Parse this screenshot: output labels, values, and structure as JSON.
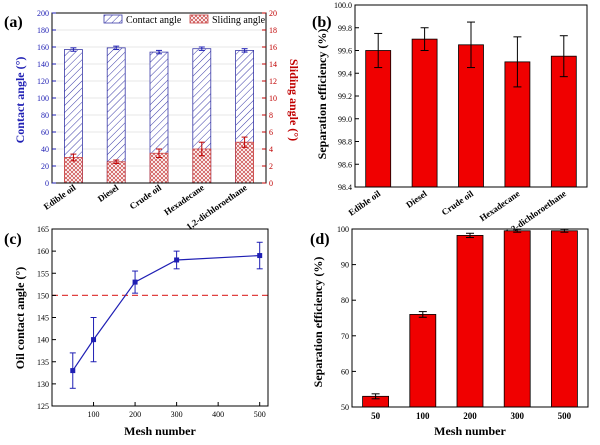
{
  "colors": {
    "blue": "#1f1fb4",
    "red": "#c00000",
    "bar_red": "#f00000",
    "hatch_blue": "#3a3aa8",
    "hatch_red": "#c84040",
    "dashed_red": "#e04040"
  },
  "chart_data": [
    {
      "id": "a",
      "panel_label": "(a)",
      "type": "bar",
      "categories": [
        "Edible oil",
        "Diesel",
        "Crude oil",
        "Hexadecane",
        "1,2-dichloroethane"
      ],
      "series": [
        {
          "name": "Contact angle",
          "axis": "left",
          "values": [
            157,
            159,
            154,
            158,
            156
          ],
          "errors": [
            2,
            2,
            2,
            2,
            2
          ]
        },
        {
          "name": "Sliding angle",
          "axis": "right",
          "values": [
            3.0,
            2.5,
            3.5,
            4.0,
            4.8
          ],
          "errors": [
            0.4,
            0.2,
            0.5,
            0.8,
            0.6
          ]
        }
      ],
      "ylabel": "Contact angle (°)",
      "ylim": [
        0,
        200
      ],
      "yticks": [
        0,
        20,
        40,
        60,
        80,
        100,
        120,
        140,
        160,
        180,
        200
      ],
      "y2label": "Sliding angle (°)",
      "y2lim": [
        0,
        20
      ],
      "y2ticks": [
        0,
        2,
        4,
        6,
        8,
        10,
        12,
        14,
        16,
        18,
        20
      ],
      "legend": "top"
    },
    {
      "id": "b",
      "panel_label": "(b)",
      "type": "bar",
      "categories": [
        "Edible oil",
        "Diesel",
        "Crude oil",
        "Hexadecane",
        "1,2-dichloroethane"
      ],
      "values": [
        99.6,
        99.7,
        99.65,
        99.5,
        99.55
      ],
      "errors": [
        0.15,
        0.1,
        0.2,
        0.22,
        0.18
      ],
      "ylabel": "Separation efficiency (%)",
      "ylim": [
        98.4,
        100.0
      ],
      "yticks": [
        98.4,
        98.6,
        98.8,
        99.0,
        99.2,
        99.4,
        99.6,
        99.8,
        100.0
      ]
    },
    {
      "id": "c",
      "panel_label": "(c)",
      "type": "line",
      "x": [
        50,
        100,
        200,
        300,
        500
      ],
      "y": [
        133,
        140,
        153,
        158,
        159
      ],
      "errors": [
        4,
        5,
        2.5,
        2,
        3
      ],
      "reference_line": 150,
      "xlabel": "Mesh number",
      "ylabel": "Oil contact angle (°)",
      "xlim": [
        0,
        520
      ],
      "xticks": [
        100,
        200,
        300,
        400,
        500
      ],
      "ylim": [
        125,
        165
      ],
      "yticks": [
        125,
        130,
        135,
        140,
        145,
        150,
        155,
        160,
        165
      ]
    },
    {
      "id": "d",
      "panel_label": "(d)",
      "type": "bar",
      "categories": [
        "50",
        "100",
        "200",
        "300",
        "500"
      ],
      "values": [
        53,
        76,
        98.2,
        99.5,
        99.5
      ],
      "errors": [
        0.7,
        0.8,
        0.6,
        0.4,
        0.4
      ],
      "xlabel": "Mesh number",
      "ylabel": "Separation efficiency (%)",
      "ylim": [
        50,
        100
      ],
      "yticks": [
        50,
        60,
        70,
        80,
        90,
        100
      ]
    }
  ]
}
